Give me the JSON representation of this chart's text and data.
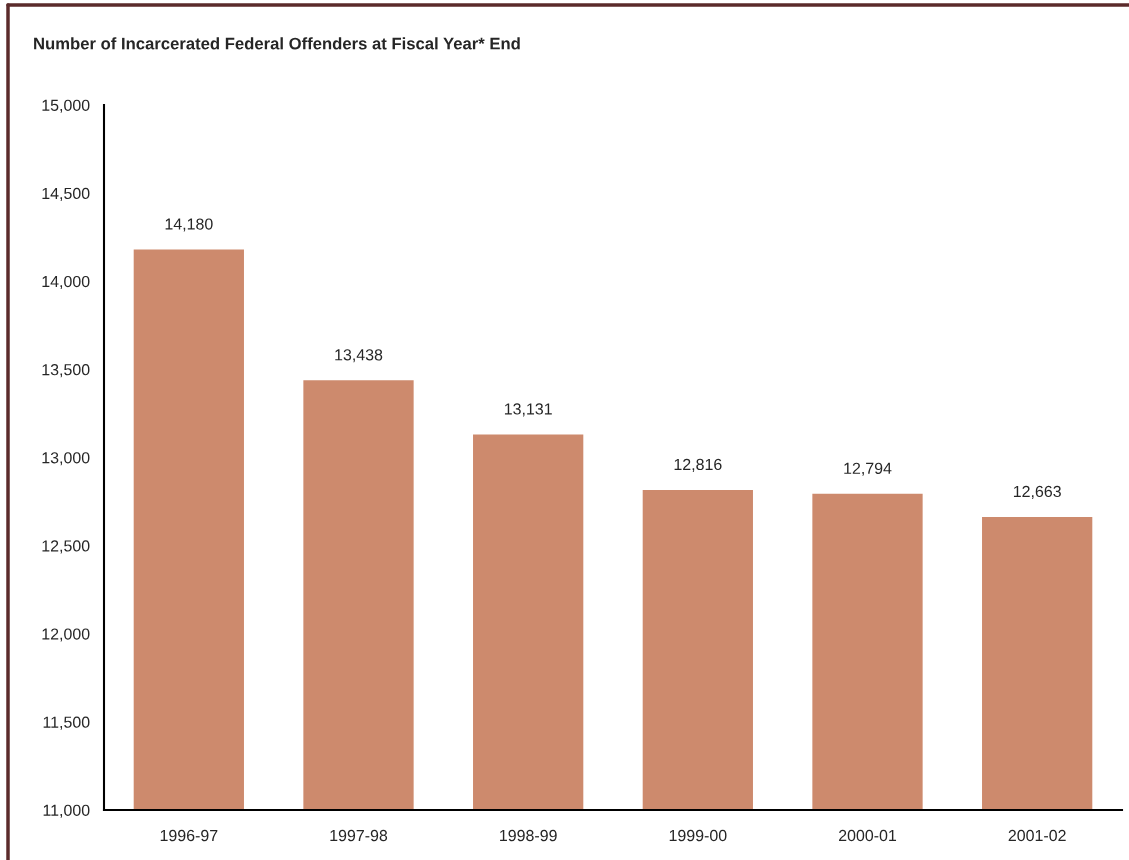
{
  "chart_data": {
    "type": "bar",
    "title": "Number of Incarcerated Federal Offenders at Fiscal Year* End",
    "categories": [
      "1996-97",
      "1997-98",
      "1998-99",
      "1999-00",
      "2000-01",
      "2001-02"
    ],
    "values": [
      14180,
      13438,
      13131,
      12816,
      12794,
      12663
    ],
    "value_labels": [
      "14,180",
      "13,438",
      "13,131",
      "12,816",
      "12,794",
      "12,663"
    ],
    "color": "#cd8a6d",
    "ylim": [
      11000,
      15000
    ],
    "yticks": [
      {
        "value": 11000,
        "label": "11,000"
      },
      {
        "value": 11500,
        "label": "11,500"
      },
      {
        "value": 12000,
        "label": "12,000"
      },
      {
        "value": 12500,
        "label": "12,500"
      },
      {
        "value": 13000,
        "label": "13,000"
      },
      {
        "value": 13500,
        "label": "13,500"
      },
      {
        "value": 14000,
        "label": "14,000"
      },
      {
        "value": 14500,
        "label": "14,500"
      },
      {
        "value": 15000,
        "label": "15,000"
      }
    ]
  }
}
